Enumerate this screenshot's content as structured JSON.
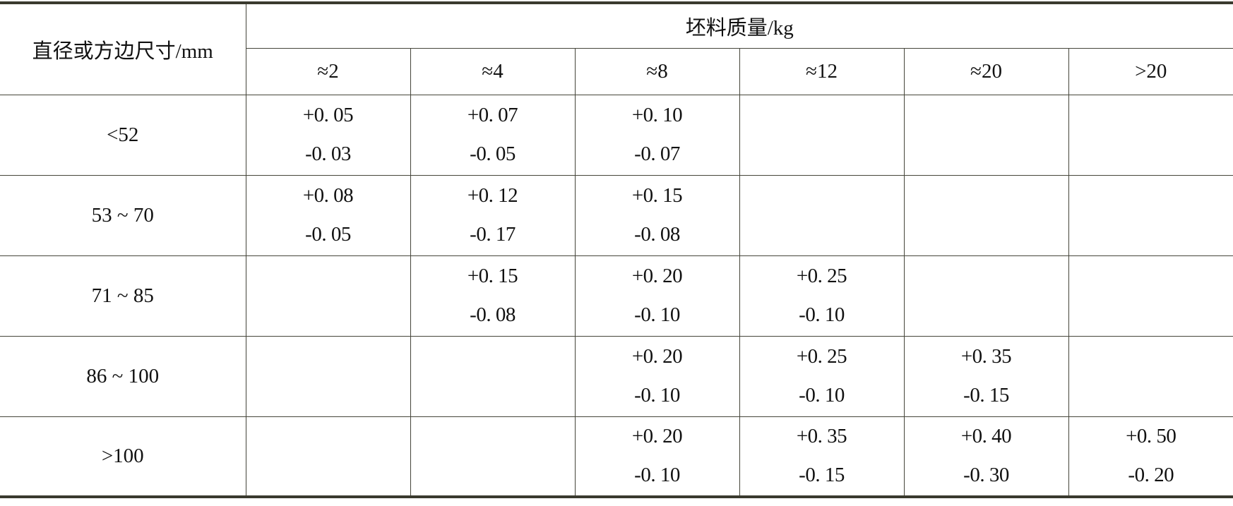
{
  "table": {
    "row_header_label": "直径或方边尺寸/mm",
    "group_header_label": "坯料质量/kg",
    "mass_columns": [
      "≈2",
      "≈4",
      "≈8",
      "≈12",
      "≈20",
      ">20"
    ],
    "rows": [
      {
        "size": "<52",
        "cells": [
          [
            "+0. 05",
            "-0. 03"
          ],
          [
            "+0. 07",
            "-0. 05"
          ],
          [
            "+0. 10",
            "-0. 07"
          ],
          null,
          null,
          null
        ]
      },
      {
        "size": "53 ~ 70",
        "cells": [
          [
            "+0. 08",
            "-0. 05"
          ],
          [
            "+0. 12",
            "-0. 17"
          ],
          [
            "+0. 15",
            "-0. 08"
          ],
          null,
          null,
          null
        ]
      },
      {
        "size": "71 ~ 85",
        "cells": [
          null,
          [
            "+0. 15",
            "-0. 08"
          ],
          [
            "+0. 20",
            "-0. 10"
          ],
          [
            "+0. 25",
            "-0. 10"
          ],
          null,
          null
        ]
      },
      {
        "size": "86 ~ 100",
        "cells": [
          null,
          null,
          [
            "+0. 20",
            "-0. 10"
          ],
          [
            "+0. 25",
            "-0. 10"
          ],
          [
            "+0. 35",
            "-0. 15"
          ],
          null
        ]
      },
      {
        "size": ">100",
        "cells": [
          null,
          null,
          [
            "+0. 20",
            "-0. 10"
          ],
          [
            "+0. 35",
            "-0. 15"
          ],
          [
            "+0. 40",
            "-0. 30"
          ],
          [
            "+0. 50",
            "-0. 20"
          ]
        ]
      }
    ]
  },
  "colors": {
    "rule": "#3a3a2e",
    "text": "#111111"
  }
}
